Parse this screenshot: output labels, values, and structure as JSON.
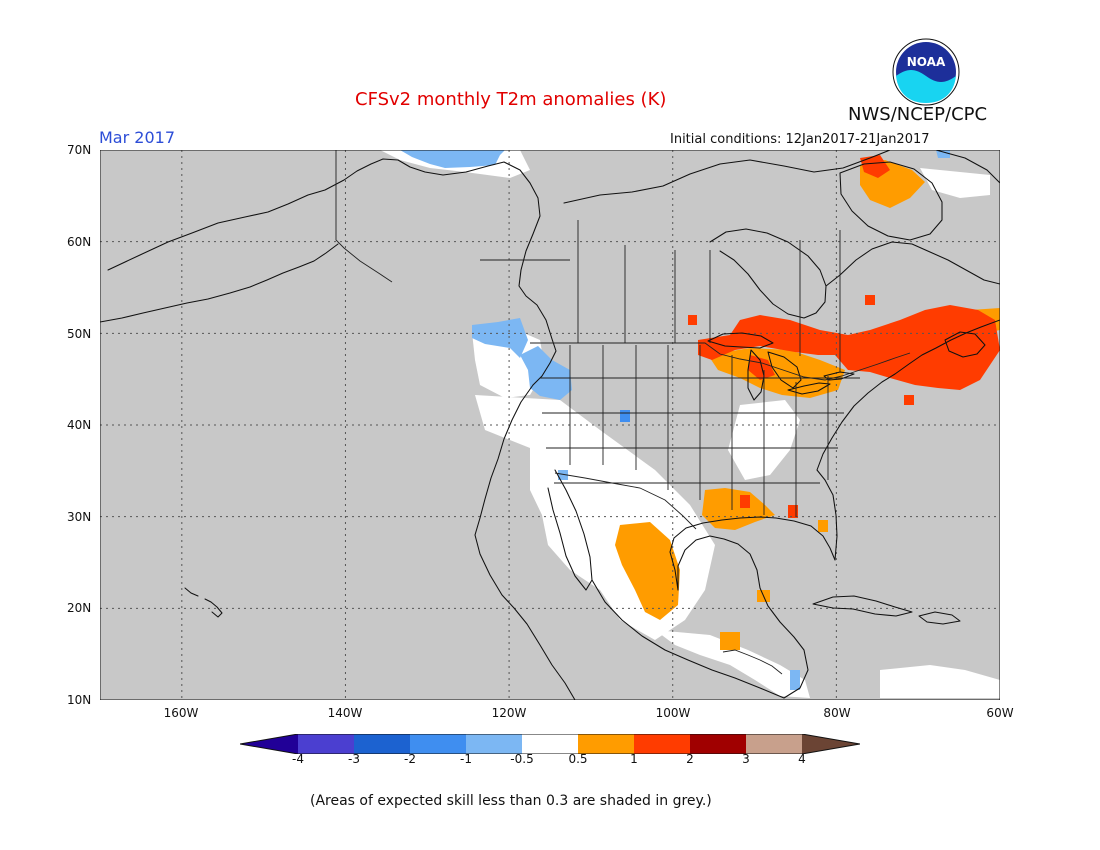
{
  "header": {
    "title": "CFSv2 monthly T2m anomalies (K)",
    "month_label": "Mar 2017",
    "initial_conditions": "Initial conditions: 12Jan2017-21Jan2017",
    "agency": "NWS/NCEP/CPC",
    "logo_text": "NOAA"
  },
  "map": {
    "lat_labels": [
      "70N",
      "60N",
      "50N",
      "40N",
      "30N",
      "20N",
      "10N"
    ],
    "lon_labels": [
      "160W",
      "140W",
      "120W",
      "100W",
      "80W",
      "60W"
    ],
    "region": {
      "lon_range": [
        -171,
        -61
      ],
      "lat_range": [
        10,
        70
      ]
    },
    "grid": true,
    "grid_style": "dotted",
    "colors": {
      "skill_grey": "#c8c8c8",
      "coast": "#111111",
      "grid": "#555555"
    }
  },
  "colorbar": {
    "labels": [
      "-4",
      "-3",
      "-2",
      "-1",
      "-0.5",
      "0.5",
      "1",
      "2",
      "3",
      "4"
    ],
    "colors": [
      "#210097",
      "#4b3fd0",
      "#1c62d0",
      "#3f8ef0",
      "#7cb7f3",
      "#ffffff",
      "#ff9c00",
      "#ff3c00",
      "#a00000",
      "#c8a08c",
      "#6b4434"
    ],
    "arrow_left_color": "#210097",
    "arrow_right_color": "#6b4434"
  },
  "footnote": "(Areas of expected skill less than 0.3 are shaded in grey.)",
  "anomaly_regions": [
    {
      "category": "-1 to -0.5",
      "area": "Northern Alaska coast / Beaufort",
      "color": "#7cb7f3"
    },
    {
      "category": "-1 to -0.5",
      "area": "Pacific Northwest",
      "color": "#7cb7f3"
    },
    {
      "category": "0.5 to 1",
      "area": "Great Lakes",
      "color": "#ff9c00"
    },
    {
      "category": "1 to 2",
      "area": "Southeast Canada / Upper Midwest",
      "color": "#ff3c00"
    },
    {
      "category": "0.5 to 1",
      "area": "Gulf coast",
      "color": "#ff9c00"
    },
    {
      "category": "0.5 to 1",
      "area": "Western Mexico",
      "color": "#ff9c00"
    },
    {
      "category": "0.5 to 1",
      "area": "Baffin Island",
      "color": "#ff9c00"
    }
  ]
}
